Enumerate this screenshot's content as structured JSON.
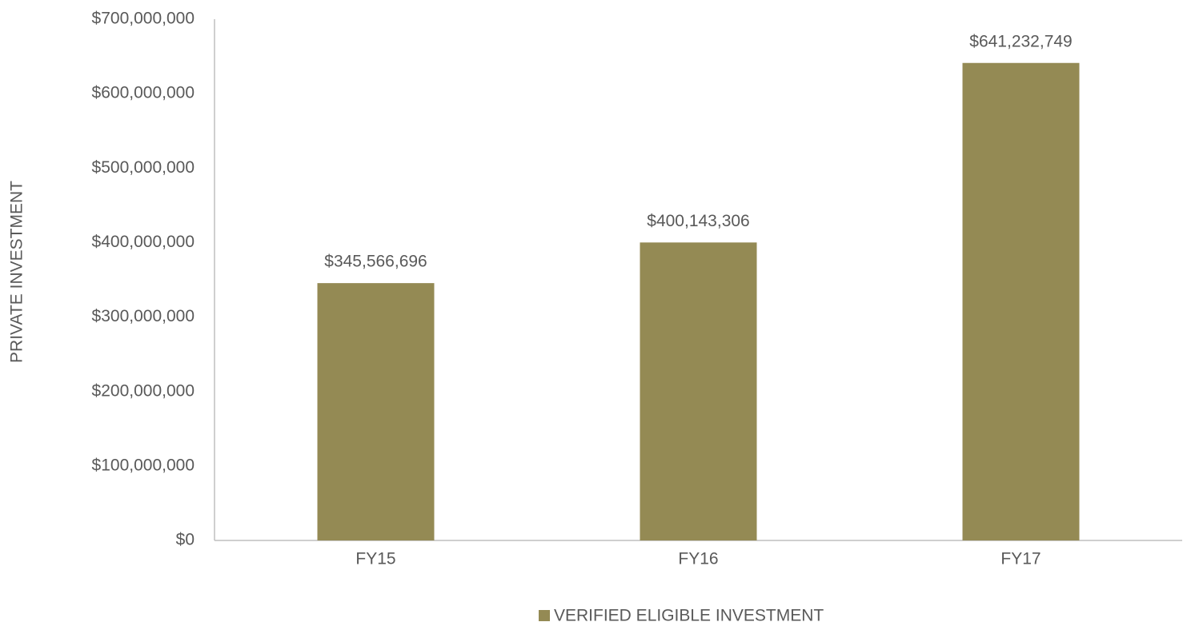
{
  "chart_data": {
    "type": "bar",
    "y_label": "PRIVATE INVESTMENT",
    "categories": [
      "FY15",
      "FY16",
      "FY17"
    ],
    "series": [
      {
        "name": "VERIFIED ELIGIBLE INVESTMENT",
        "color": "#948a54",
        "values": [
          345566696,
          400143306,
          641232749
        ],
        "value_labels": [
          "$345,566,696",
          "$400,143,306",
          "$641,232,749"
        ]
      }
    ],
    "ylim": [
      0,
      700000000
    ],
    "yticks": [
      {
        "value": 0,
        "label": "$0"
      },
      {
        "value": 100000000,
        "label": "$100,000,000"
      },
      {
        "value": 200000000,
        "label": "$200,000,000"
      },
      {
        "value": 300000000,
        "label": "$300,000,000"
      },
      {
        "value": 400000000,
        "label": "$400,000,000"
      },
      {
        "value": 500000000,
        "label": "$500,000,000"
      },
      {
        "value": 600000000,
        "label": "$600,000,000"
      },
      {
        "value": 700000000,
        "label": "$700,000,000"
      }
    ],
    "grid": false,
    "legend": "bottom"
  }
}
